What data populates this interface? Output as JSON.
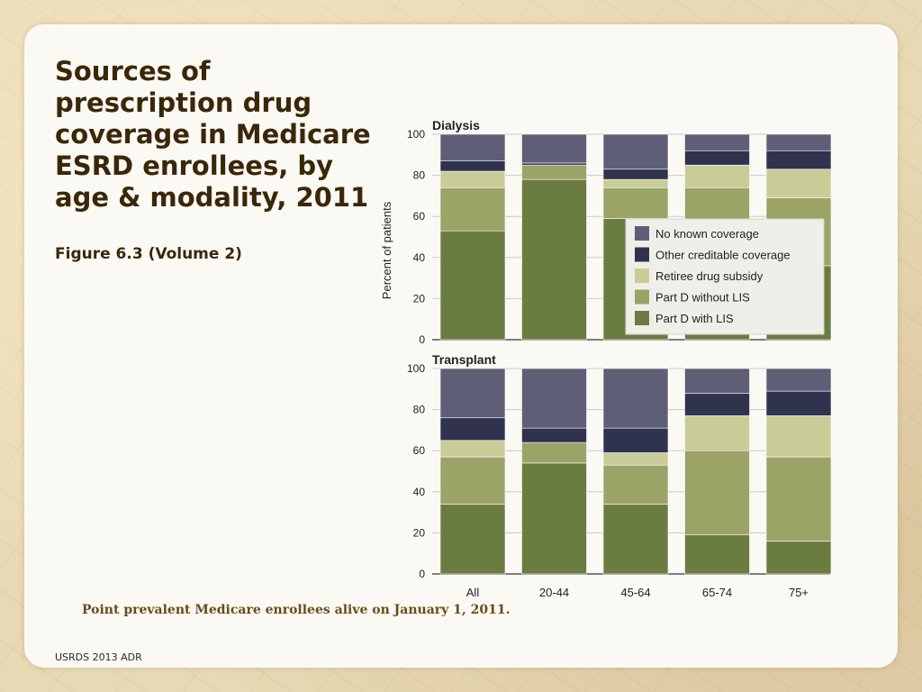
{
  "slide": {
    "title": "Sources of prescription drug coverage in Medicare ESRD enrollees, by age & modality, 2011",
    "subtitle": "Figure 6.3 (Volume 2)",
    "caption": "Point prevalent Medicare enrollees alive on January 1, 2011.",
    "footer": "USRDS 2013 ADR"
  },
  "chart_data": {
    "type": "stacked-bar",
    "ylabel": "Percent of patients",
    "ylim": [
      0,
      100
    ],
    "yticks": [
      0,
      20,
      40,
      60,
      80,
      100
    ],
    "categories": [
      "All",
      "20-44",
      "45-64",
      "65-74",
      "75+"
    ],
    "series_names": [
      "Part D with LIS",
      "Part D without LIS",
      "Retiree drug subsidy",
      "Other creditable coverage",
      "No known coverage"
    ],
    "colors": [
      "#6b7c41",
      "#9ba367",
      "#c9cc97",
      "#2f334d",
      "#5e5f76"
    ],
    "legend": {
      "position": "top-right of Dialysis panel",
      "items": [
        "No known coverage",
        "Other creditable coverage",
        "Retiree drug subsidy",
        "Part D without LIS",
        "Part D with LIS"
      ]
    },
    "panels": [
      {
        "title": "Dialysis",
        "series": [
          {
            "name": "Part D with LIS",
            "values": [
              53,
              78,
              59,
              54,
              36
            ]
          },
          {
            "name": "Part D without LIS",
            "values": [
              21,
              7,
              15,
              20,
              33
            ]
          },
          {
            "name": "Retiree drug subsidy",
            "values": [
              8,
              0,
              4,
              11,
              14
            ]
          },
          {
            "name": "Other creditable coverage",
            "values": [
              5,
              1,
              5,
              7,
              9
            ]
          },
          {
            "name": "No known coverage",
            "values": [
              13,
              14,
              17,
              8,
              8
            ]
          }
        ]
      },
      {
        "title": "Transplant",
        "series": [
          {
            "name": "Part D with LIS",
            "values": [
              34,
              54,
              34,
              19,
              16
            ]
          },
          {
            "name": "Part D without LIS",
            "values": [
              23,
              10,
              19,
              41,
              41
            ]
          },
          {
            "name": "Retiree drug subsidy",
            "values": [
              8,
              0,
              6,
              17,
              20
            ]
          },
          {
            "name": "Other creditable coverage",
            "values": [
              11,
              7,
              12,
              11,
              12
            ]
          },
          {
            "name": "No known coverage",
            "values": [
              24,
              29,
              29,
              12,
              11
            ]
          }
        ]
      }
    ]
  }
}
